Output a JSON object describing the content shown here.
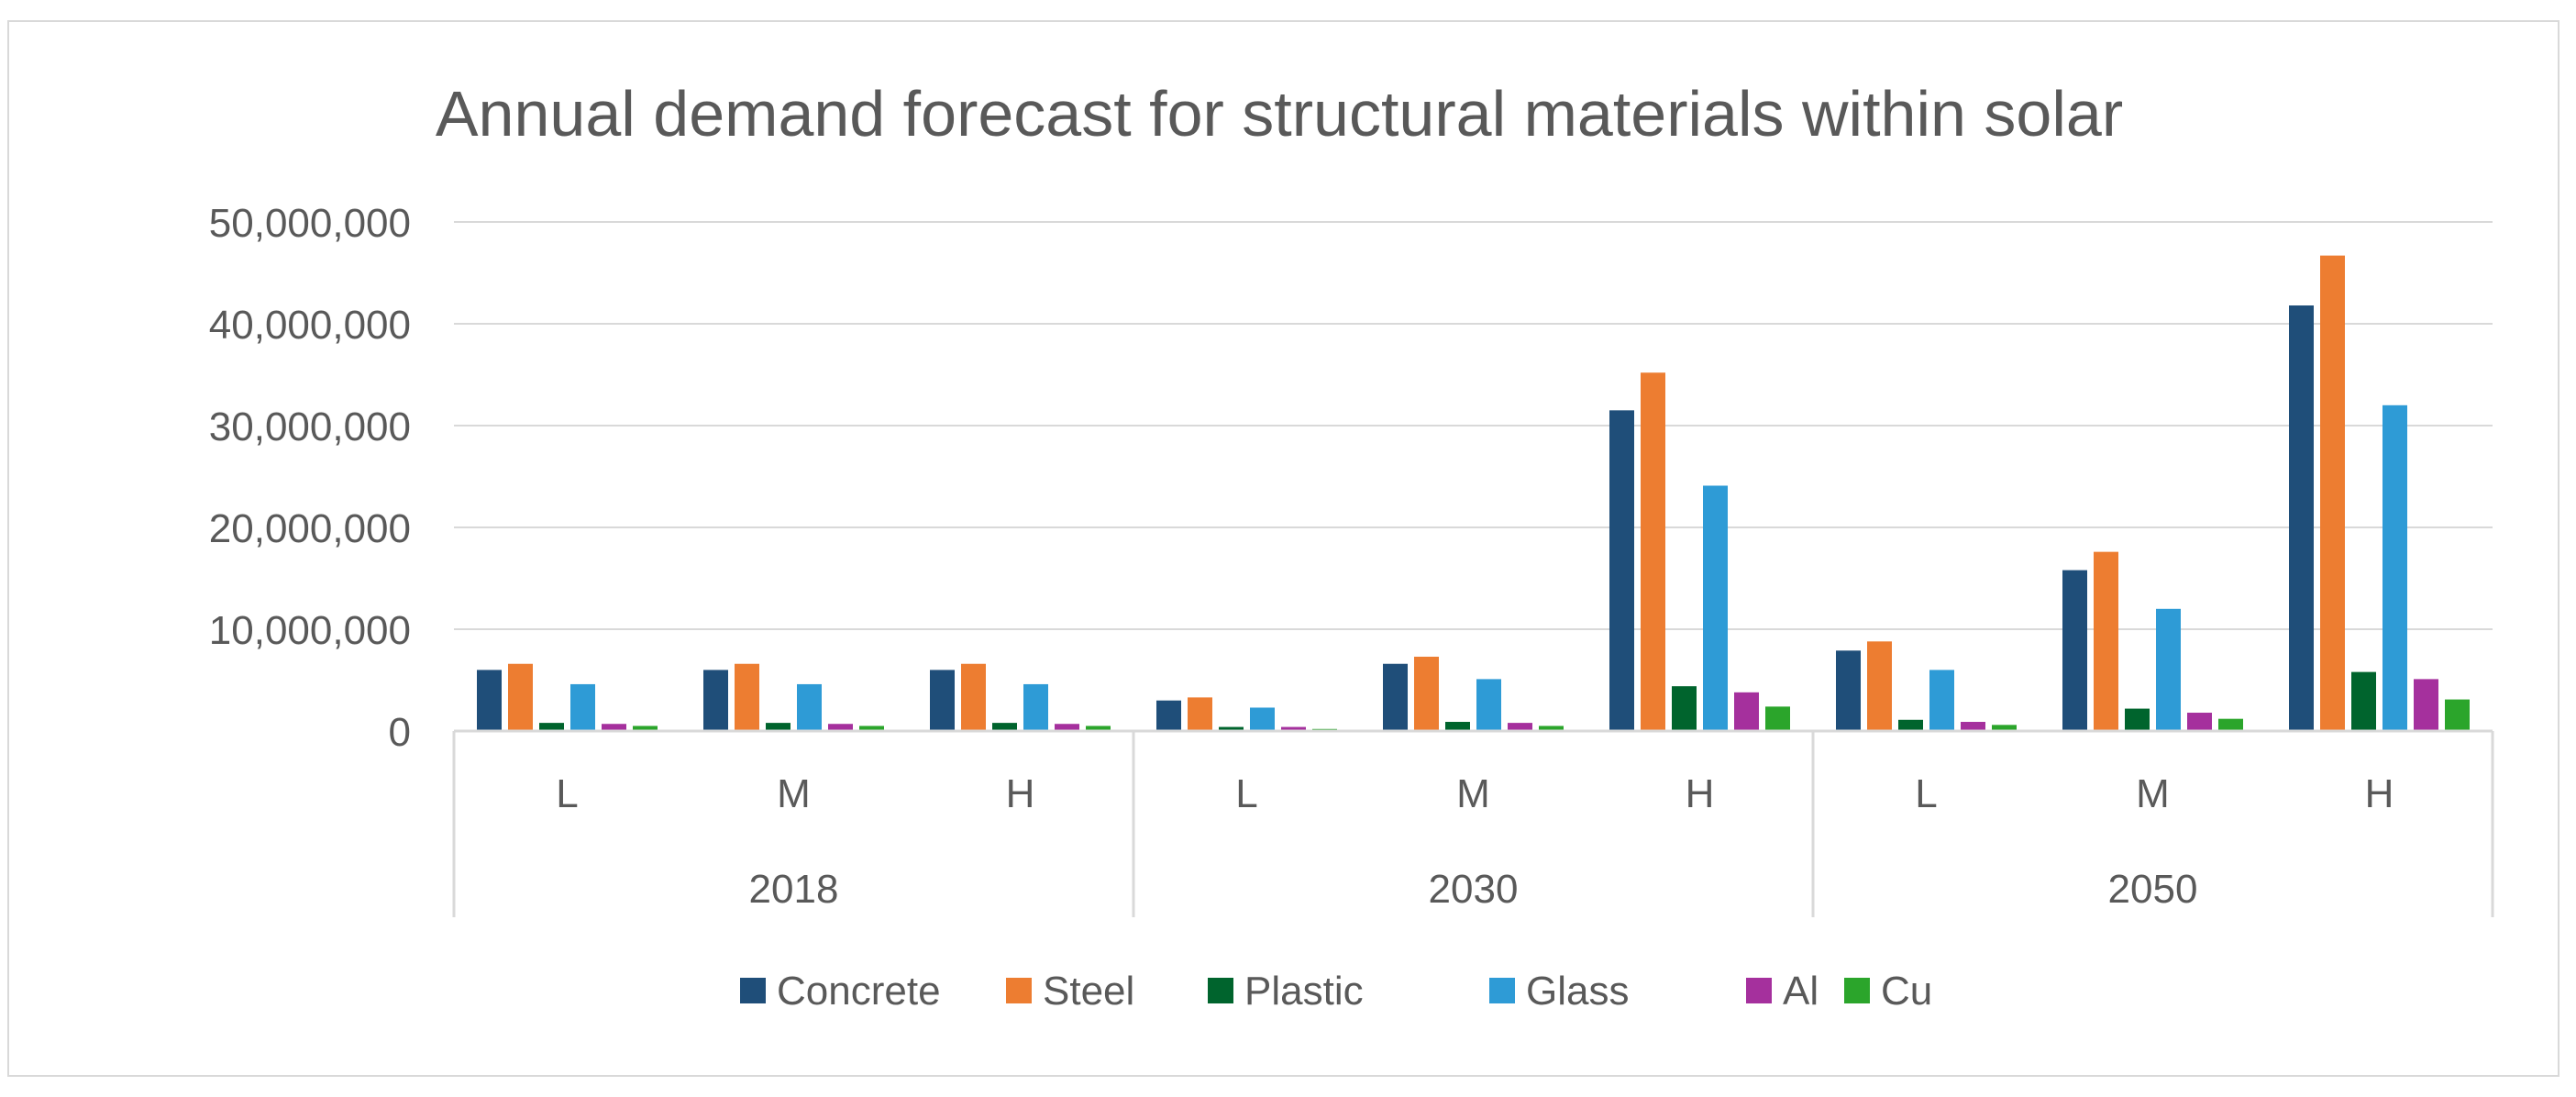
{
  "chart_data": {
    "type": "bar",
    "title": "Annual demand forecast for structural materials within solar",
    "xlabel": "",
    "ylabel": "",
    "ylim": [
      0,
      50000000
    ],
    "grid": true,
    "legend_position": "bottom",
    "y_ticks": [
      "0",
      "10,000,000",
      "20,000,000",
      "30,000,000",
      "40,000,000",
      "50,000,000"
    ],
    "y_tick_values": [
      0,
      10000000,
      20000000,
      30000000,
      40000000,
      50000000
    ],
    "groups": [
      "2018",
      "2030",
      "2050"
    ],
    "categories": [
      "L",
      "M",
      "H",
      "L",
      "M",
      "H",
      "L",
      "M",
      "H"
    ],
    "series": [
      {
        "name": "Concrete",
        "color": "#1f4e79",
        "values": [
          6000000,
          6000000,
          6000000,
          3000000,
          6600000,
          31500000,
          7900000,
          15800000,
          41800000
        ]
      },
      {
        "name": "Steel",
        "color": "#ed7d31",
        "values": [
          6600000,
          6600000,
          6600000,
          3300000,
          7300000,
          35200000,
          8800000,
          17600000,
          46700000
        ]
      },
      {
        "name": "Plastic",
        "color": "#00642d",
        "values": [
          800000,
          800000,
          800000,
          400000,
          900000,
          4400000,
          1100000,
          2200000,
          5800000
        ]
      },
      {
        "name": "Glass",
        "color": "#2e9bd6",
        "values": [
          4600000,
          4600000,
          4600000,
          2300000,
          5100000,
          24100000,
          6000000,
          12000000,
          32000000
        ]
      },
      {
        "name": "Al",
        "color": "#a5309d",
        "values": [
          700000,
          700000,
          700000,
          400000,
          800000,
          3800000,
          900000,
          1800000,
          5100000
        ]
      },
      {
        "name": "Cu",
        "color": "#2ba52b",
        "values": [
          500000,
          500000,
          500000,
          200000,
          500000,
          2400000,
          600000,
          1200000,
          3100000
        ]
      }
    ]
  }
}
